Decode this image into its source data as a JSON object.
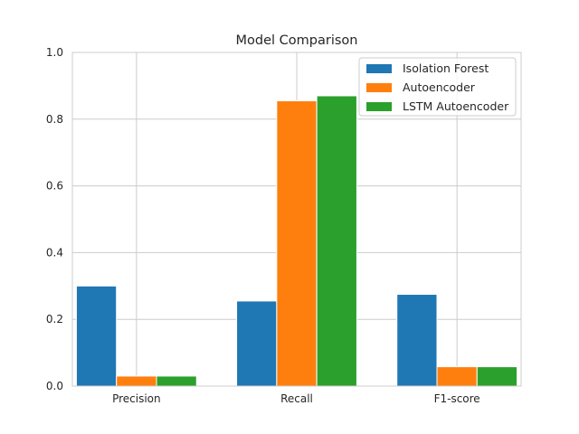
{
  "chart_data": {
    "type": "bar",
    "title": "Model Comparison",
    "xlabel": "",
    "ylabel": "",
    "categories": [
      "Precision",
      "Recall",
      "F1-score"
    ],
    "series": [
      {
        "name": "Isolation Forest",
        "values": [
          0.3,
          0.255,
          0.275
        ],
        "color": "#1f77b4"
      },
      {
        "name": "Autoencoder",
        "values": [
          0.03,
          0.855,
          0.058
        ],
        "color": "#ff7f0e"
      },
      {
        "name": "LSTM Autoencoder",
        "values": [
          0.03,
          0.87,
          0.058
        ],
        "color": "#2ca02c"
      }
    ],
    "ylim": [
      0,
      1.0
    ],
    "yticks": [
      "0.0",
      "0.2",
      "0.4",
      "0.6",
      "0.8",
      "1.0"
    ],
    "grid": true,
    "legend_position": "top-right"
  }
}
